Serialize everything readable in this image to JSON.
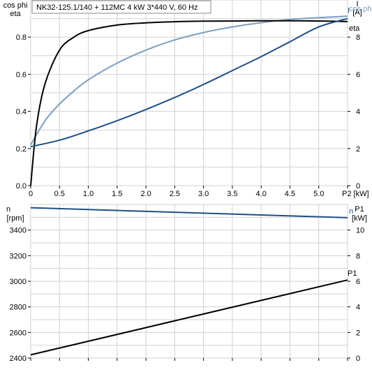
{
  "chart_data": [
    {
      "type": "line",
      "title": "NK32-125.1/140 + 112MC   4 kW   3*440 V, 60 Hz",
      "xlabel": "P2 [kW]",
      "x_ticks": [
        "0",
        "0.5",
        "1.0",
        "1.5",
        "2.0",
        "2.5",
        "3.0",
        "3.5",
        "4.0",
        "4.5",
        "5.0",
        "P2 [kW]"
      ],
      "xlim": [
        0,
        5.5
      ],
      "ylabel_left": [
        "cos phi",
        "eta"
      ],
      "ylim_left": [
        0,
        1.0
      ],
      "y_ticks_left": [
        "0.0",
        "0.2",
        "0.4",
        "0.6",
        "0.8"
      ],
      "ylabel_right": [
        "I",
        "[A]"
      ],
      "ylim_right": [
        0,
        10
      ],
      "y_ticks_right": [
        "0",
        "2",
        "4",
        "6",
        "8"
      ],
      "grid": true,
      "series": [
        {
          "name": "cos phi",
          "axis": "left",
          "color": "#7b9fc2",
          "x": [
            0,
            0.25,
            0.5,
            0.75,
            1.0,
            1.5,
            2.0,
            2.5,
            3.0,
            3.5,
            4.0,
            4.5,
            5.0,
            5.5
          ],
          "y": [
            0.22,
            0.35,
            0.44,
            0.51,
            0.57,
            0.66,
            0.73,
            0.785,
            0.825,
            0.855,
            0.878,
            0.895,
            0.905,
            0.913
          ]
        },
        {
          "name": "eta",
          "axis": "left",
          "color": "#000000",
          "x": [
            0,
            0.1,
            0.25,
            0.5,
            0.75,
            1.0,
            1.5,
            2.0,
            2.5,
            3.0,
            3.5,
            4.0,
            4.5,
            5.0,
            5.5
          ],
          "y": [
            0.0,
            0.32,
            0.55,
            0.73,
            0.8,
            0.835,
            0.865,
            0.877,
            0.883,
            0.886,
            0.887,
            0.888,
            0.888,
            0.887,
            0.884
          ]
        },
        {
          "name": "I",
          "axis": "right",
          "color": "#1f4e86",
          "x": [
            0,
            0.5,
            1.0,
            1.5,
            2.0,
            2.5,
            3.0,
            3.5,
            4.0,
            4.5,
            5.0,
            5.5
          ],
          "y": [
            2.1,
            2.45,
            2.95,
            3.5,
            4.1,
            4.75,
            5.45,
            6.2,
            6.95,
            7.75,
            8.55,
            9.0
          ]
        }
      ]
    },
    {
      "type": "line",
      "xlim": [
        0,
        5.5
      ],
      "ylabel_left": [
        "n",
        "[rpm]"
      ],
      "ylim_left": [
        2400,
        3600
      ],
      "y_ticks_left": [
        "2400",
        "2600",
        "2800",
        "3000",
        "3200",
        "3400"
      ],
      "ylabel_right": [
        "P1",
        "[kW]"
      ],
      "ylim_right": [
        0,
        12
      ],
      "y_ticks_right": [
        "0",
        "2",
        "4",
        "6",
        "8",
        "10"
      ],
      "grid": true,
      "series": [
        {
          "name": "n",
          "axis": "left",
          "color": "#1f4e86",
          "x": [
            0,
            5.5
          ],
          "y": [
            3575,
            3497
          ]
        },
        {
          "name": "P1",
          "axis": "right",
          "color": "#000000",
          "x": [
            0,
            5.5
          ],
          "y": [
            0.25,
            6.1
          ]
        }
      ]
    }
  ]
}
